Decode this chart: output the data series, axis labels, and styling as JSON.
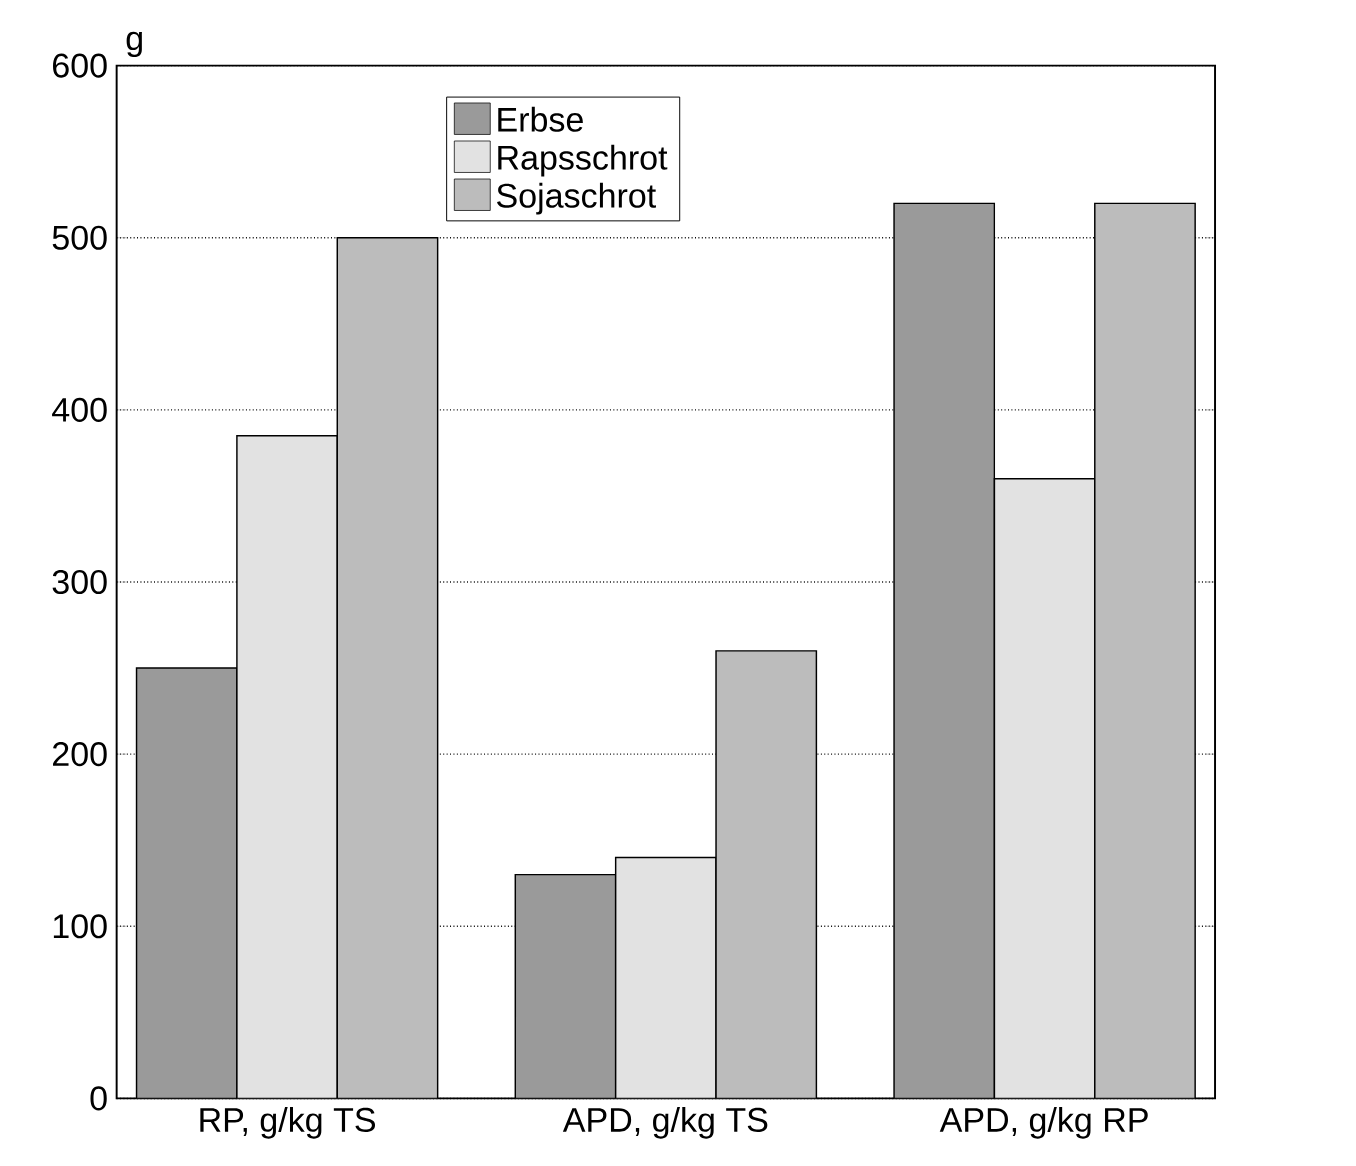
{
  "chart_data": {
    "type": "bar",
    "ylabel": "g",
    "categories": [
      "RP, g/kg TS",
      "APD, g/kg TS",
      "APD, g/kg RP"
    ],
    "series": [
      {
        "name": "Erbse",
        "color": "#9a9a9a",
        "values": [
          250,
          130,
          520
        ]
      },
      {
        "name": "Rapsschrot",
        "color": "#e2e2e2",
        "values": [
          385,
          140,
          360
        ]
      },
      {
        "name": "Sojaschrot",
        "color": "#bcbcbc",
        "values": [
          500,
          260,
          520
        ]
      }
    ],
    "ylim": [
      0,
      600
    ],
    "yticks": [
      0,
      100,
      200,
      300,
      400,
      500,
      600
    ],
    "grid": "y",
    "legend": "top"
  }
}
